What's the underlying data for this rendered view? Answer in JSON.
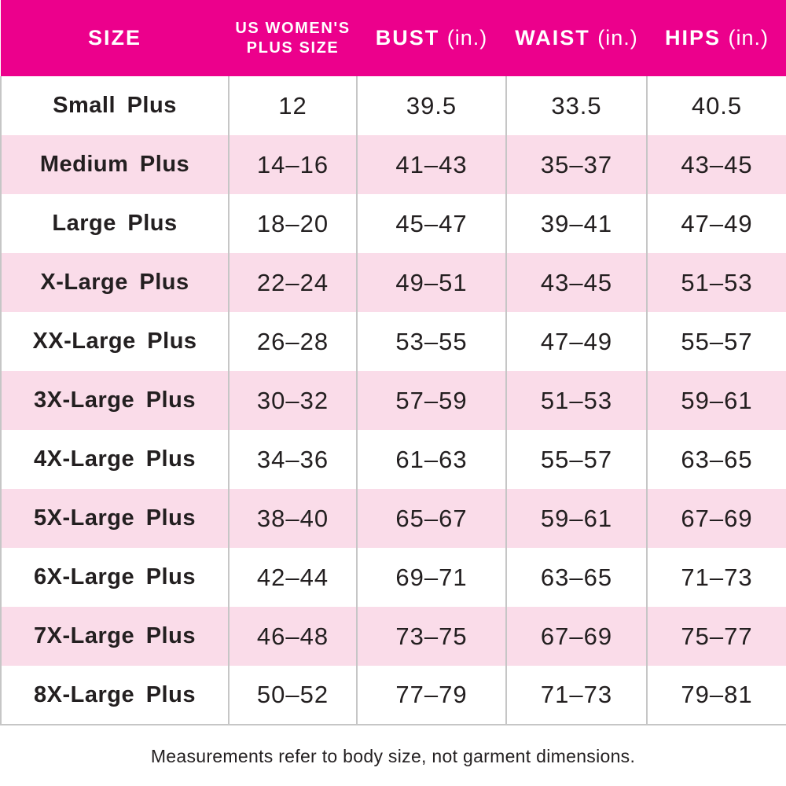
{
  "chart_data": {
    "type": "table",
    "columns": [
      {
        "title": "SIZE",
        "unit": ""
      },
      {
        "title": "US WOMEN'S PLUS SIZE",
        "line1": "US WOMEN'S",
        "line2": "PLUS SIZE"
      },
      {
        "title": "BUST",
        "unit": "(in.)"
      },
      {
        "title": "WAIST",
        "unit": "(in.)"
      },
      {
        "title": "HIPS",
        "unit": "(in.)"
      }
    ],
    "rows": [
      [
        "Small Plus",
        "12",
        "39.5",
        "33.5",
        "40.5"
      ],
      [
        "Medium Plus",
        "14–16",
        "41–43",
        "35–37",
        "43–45"
      ],
      [
        "Large Plus",
        "18–20",
        "45–47",
        "39–41",
        "47–49"
      ],
      [
        "X-Large Plus",
        "22–24",
        "49–51",
        "43–45",
        "51–53"
      ],
      [
        "XX-Large Plus",
        "26–28",
        "53–55",
        "47–49",
        "55–57"
      ],
      [
        "3X-Large Plus",
        "30–32",
        "57–59",
        "51–53",
        "59–61"
      ],
      [
        "4X-Large Plus",
        "34–36",
        "61–63",
        "55–57",
        "63–65"
      ],
      [
        "5X-Large Plus",
        "38–40",
        "65–67",
        "59–61",
        "67–69"
      ],
      [
        "6X-Large Plus",
        "42–44",
        "69–71",
        "63–65",
        "71–73"
      ],
      [
        "7X-Large Plus",
        "46–48",
        "73–75",
        "67–69",
        "75–77"
      ],
      [
        "8X-Large Plus",
        "50–52",
        "77–79",
        "71–73",
        "79–81"
      ]
    ]
  },
  "footer": {
    "note": "Measurements refer to body size, not garment dimensions."
  },
  "colors": {
    "header_bg": "#EC008C",
    "header_text": "#FFFFFF",
    "row_bg": "#FFFFFF",
    "row_alt_bg": "#FADCE9",
    "divider": "#C6C6C6",
    "body_text": "#231F20"
  }
}
